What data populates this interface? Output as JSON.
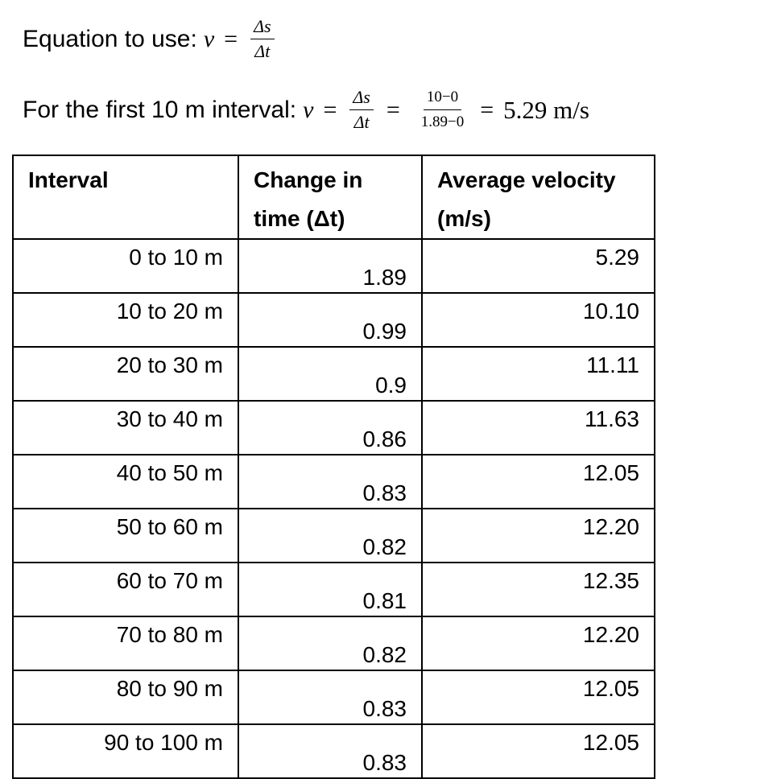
{
  "equation_1": {
    "label": "Equation to use:",
    "variable": "v",
    "operator": "=",
    "numerator": "Δs",
    "denominator": "Δt"
  },
  "equation_2": {
    "label": "For the first 10 m interval:",
    "variable": "v",
    "operator": "=",
    "fractions": [
      {
        "numerator": "Δs",
        "denominator": "Δt"
      },
      {
        "numerator": "10−0",
        "denominator": "1.89−0"
      }
    ],
    "result": "5.29 m/s"
  },
  "table": {
    "header": [
      "Interval",
      "Change in time (Δt)",
      "Average velocity (m/s)"
    ],
    "rows": [
      [
        "0 to 10 m",
        "1.89",
        "5.29"
      ],
      [
        "10 to 20 m",
        "0.99",
        "10.10"
      ],
      [
        "20 to 30 m",
        "0.9",
        "11.11"
      ],
      [
        "30 to 40 m",
        "0.86",
        "11.63"
      ],
      [
        "40 to 50 m",
        "0.83",
        "12.05"
      ],
      [
        "50 to 60 m",
        "0.82",
        "12.20"
      ],
      [
        "60 to 70 m",
        "0.81",
        "12.35"
      ],
      [
        "70 to 80 m",
        "0.82",
        "12.20"
      ],
      [
        "80 to 90 m",
        "0.83",
        "12.05"
      ],
      [
        "90 to 100 m",
        "0.83",
        "12.05"
      ]
    ]
  }
}
